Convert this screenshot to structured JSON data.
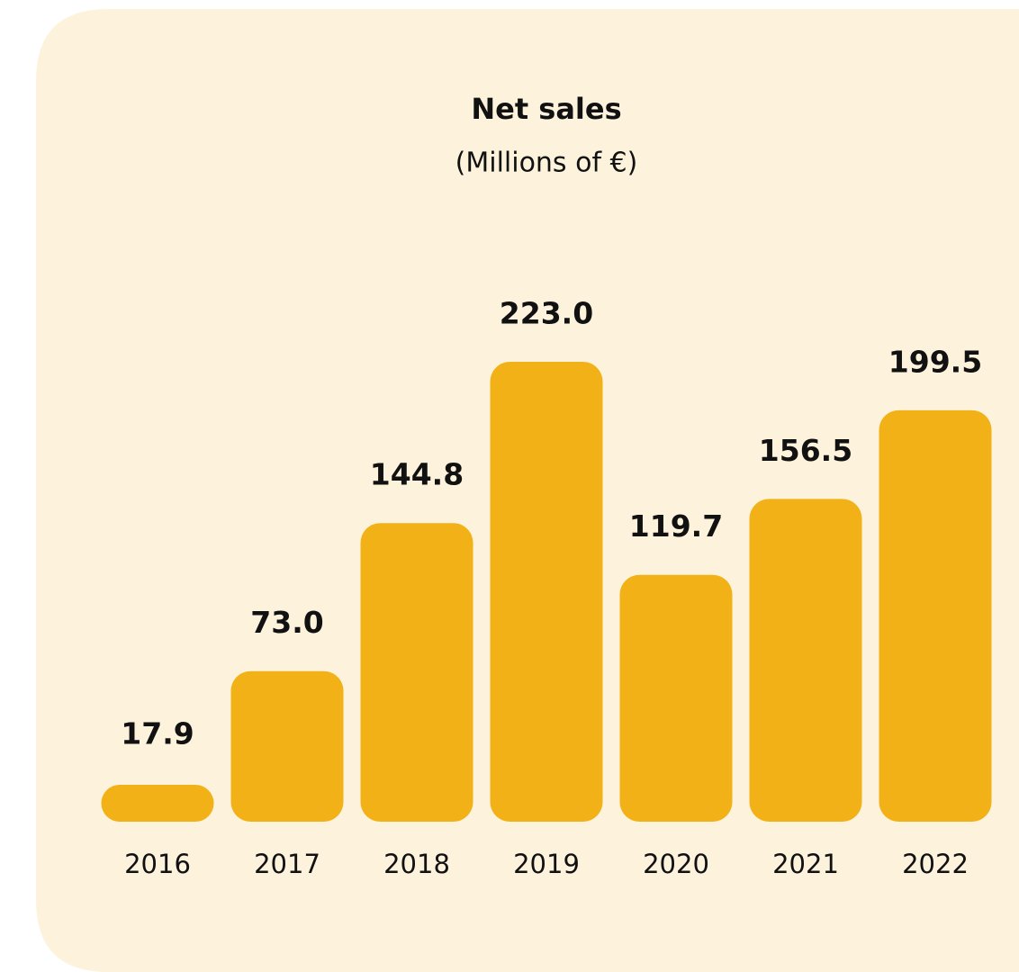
{
  "chart_data": {
    "type": "bar",
    "title": "Net sales",
    "subtitle": "(Millions of €)",
    "categories": [
      "2016",
      "2017",
      "2018",
      "2019",
      "2020",
      "2021",
      "2022"
    ],
    "values": [
      17.9,
      73.0,
      144.8,
      223.0,
      119.7,
      156.5,
      199.5
    ],
    "value_labels": [
      "17.9",
      "73.0",
      "144.8",
      "223.0",
      "119.7",
      "156.5",
      "199.5"
    ],
    "color": "#f2b117"
  }
}
